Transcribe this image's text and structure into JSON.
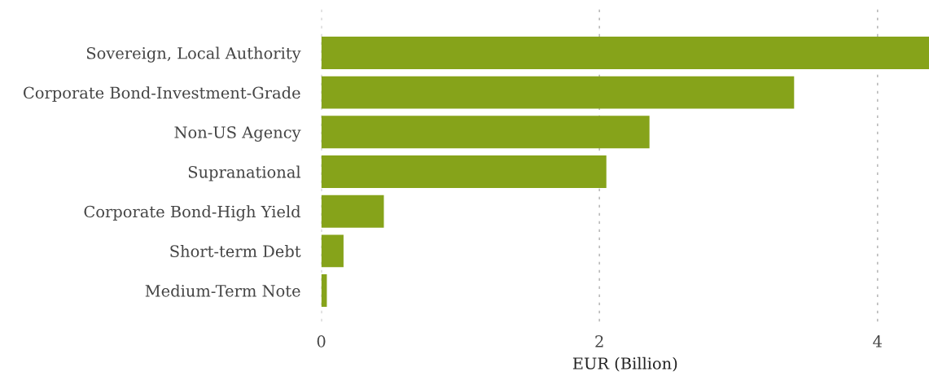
{
  "chart_data": {
    "type": "bar",
    "orientation": "horizontal",
    "xlabel": "EUR (Billion)",
    "categories": [
      "Sovereign, Local Authority",
      "Corporate Bond-Investment-Grade",
      "Non-US Agency",
      "Supranational",
      "Corporate Bond-High Yield",
      "Short-term Debt",
      "Medium-Term Note"
    ],
    "values": [
      4.37,
      3.4,
      2.36,
      2.05,
      0.45,
      0.16,
      0.04
    ],
    "color": "#86a31a",
    "xlim": [
      0,
      4.37
    ],
    "xticks": [
      0,
      2,
      4
    ],
    "grid": "x"
  }
}
